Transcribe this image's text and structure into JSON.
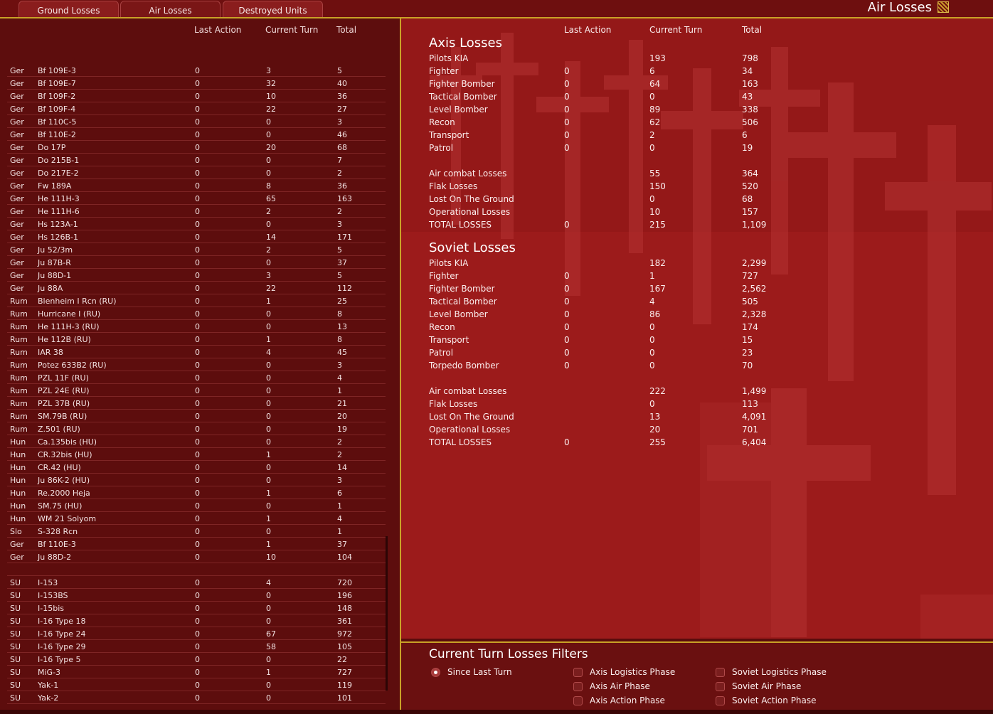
{
  "tabs": [
    "Ground Losses",
    "Air Losses",
    "Destroyed Units"
  ],
  "window_title": "Air Losses",
  "columns": {
    "last_action": "Last Action",
    "current_turn": "Current Turn",
    "total": "Total"
  },
  "aircraft_rows": [
    [
      "Ger",
      "Bf 109E-3",
      "0",
      "3",
      "5"
    ],
    [
      "Ger",
      "Bf 109E-7",
      "0",
      "32",
      "40"
    ],
    [
      "Ger",
      "Bf 109F-2",
      "0",
      "10",
      "36"
    ],
    [
      "Ger",
      "Bf 109F-4",
      "0",
      "22",
      "27"
    ],
    [
      "Ger",
      "Bf 110C-5",
      "0",
      "0",
      "3"
    ],
    [
      "Ger",
      "Bf 110E-2",
      "0",
      "0",
      "46"
    ],
    [
      "Ger",
      "Do 17P",
      "0",
      "20",
      "68"
    ],
    [
      "Ger",
      "Do 215B-1",
      "0",
      "0",
      "7"
    ],
    [
      "Ger",
      "Do 217E-2",
      "0",
      "0",
      "2"
    ],
    [
      "Ger",
      "Fw 189A",
      "0",
      "8",
      "36"
    ],
    [
      "Ger",
      "He 111H-3",
      "0",
      "65",
      "163"
    ],
    [
      "Ger",
      "He 111H-6",
      "0",
      "2",
      "2"
    ],
    [
      "Ger",
      "Hs 123A-1",
      "0",
      "0",
      "3"
    ],
    [
      "Ger",
      "Hs 126B-1",
      "0",
      "14",
      "171"
    ],
    [
      "Ger",
      "Ju 52/3m",
      "0",
      "2",
      "5"
    ],
    [
      "Ger",
      "Ju 87B-R",
      "0",
      "0",
      "37"
    ],
    [
      "Ger",
      "Ju 88D-1",
      "0",
      "3",
      "5"
    ],
    [
      "Ger",
      "Ju 88A",
      "0",
      "22",
      "112"
    ],
    [
      "Rum",
      "Blenheim I Rcn (RU)",
      "0",
      "1",
      "25"
    ],
    [
      "Rum",
      "Hurricane I (RU)",
      "0",
      "0",
      "8"
    ],
    [
      "Rum",
      "He 111H-3 (RU)",
      "0",
      "0",
      "13"
    ],
    [
      "Rum",
      "He 112B (RU)",
      "0",
      "1",
      "8"
    ],
    [
      "Rum",
      "IAR 38",
      "0",
      "4",
      "45"
    ],
    [
      "Rum",
      "Potez 633B2 (RU)",
      "0",
      "0",
      "3"
    ],
    [
      "Rum",
      "PZL 11F (RU)",
      "0",
      "0",
      "4"
    ],
    [
      "Rum",
      "PZL 24E (RU)",
      "0",
      "0",
      "1"
    ],
    [
      "Rum",
      "PZL 37B (RU)",
      "0",
      "0",
      "21"
    ],
    [
      "Rum",
      "SM.79B (RU)",
      "0",
      "0",
      "20"
    ],
    [
      "Rum",
      "Z.501 (RU)",
      "0",
      "0",
      "19"
    ],
    [
      "Hun",
      "Ca.135bis (HU)",
      "0",
      "0",
      "2"
    ],
    [
      "Hun",
      "CR.32bis (HU)",
      "0",
      "1",
      "2"
    ],
    [
      "Hun",
      "CR.42 (HU)",
      "0",
      "0",
      "14"
    ],
    [
      "Hun",
      "Ju 86K-2 (HU)",
      "0",
      "0",
      "3"
    ],
    [
      "Hun",
      "Re.2000 Heja",
      "0",
      "1",
      "6"
    ],
    [
      "Hun",
      "SM.75 (HU)",
      "0",
      "0",
      "1"
    ],
    [
      "Hun",
      "WM 21 Solyom",
      "0",
      "1",
      "4"
    ],
    [
      "Slo",
      "S-328 Rcn",
      "0",
      "0",
      "1"
    ],
    [
      "Ger",
      "Bf 110E-3",
      "0",
      "1",
      "37"
    ],
    [
      "Ger",
      "Ju 88D-2",
      "0",
      "10",
      "104"
    ],
    [
      "",
      "",
      "",
      "",
      ""
    ],
    [
      "SU",
      "I-153",
      "0",
      "4",
      "720"
    ],
    [
      "SU",
      "I-153BS",
      "0",
      "0",
      "196"
    ],
    [
      "SU",
      "I-15bis",
      "0",
      "0",
      "148"
    ],
    [
      "SU",
      "I-16 Type 18",
      "0",
      "0",
      "361"
    ],
    [
      "SU",
      "I-16 Type 24",
      "0",
      "67",
      "972"
    ],
    [
      "SU",
      "I-16 Type 29",
      "0",
      "58",
      "105"
    ],
    [
      "SU",
      "I-16 Type 5",
      "0",
      "0",
      "22"
    ],
    [
      "SU",
      "MiG-3",
      "0",
      "1",
      "727"
    ],
    [
      "SU",
      "Yak-1",
      "0",
      "0",
      "119"
    ],
    [
      "SU",
      "Yak-2",
      "0",
      "0",
      "101"
    ]
  ],
  "axis": {
    "title": "Axis Losses",
    "rows": [
      [
        "Pilots KIA",
        "",
        "193",
        "798"
      ],
      [
        "Fighter",
        "0",
        "6",
        "34"
      ],
      [
        "Fighter Bomber",
        "0",
        "64",
        "163"
      ],
      [
        "Tactical Bomber",
        "0",
        "0",
        "43"
      ],
      [
        "Level Bomber",
        "0",
        "89",
        "338"
      ],
      [
        "Recon",
        "0",
        "62",
        "506"
      ],
      [
        "Transport",
        "0",
        "2",
        "6"
      ],
      [
        "Patrol",
        "0",
        "0",
        "19"
      ]
    ],
    "summary": [
      [
        "Air combat Losses",
        "",
        "55",
        "364"
      ],
      [
        "Flak Losses",
        "",
        "150",
        "520"
      ],
      [
        "Lost On The Ground",
        "",
        "0",
        "68"
      ],
      [
        "Operational Losses",
        "",
        "10",
        "157"
      ],
      [
        "TOTAL LOSSES",
        "0",
        "215",
        "1,109"
      ]
    ]
  },
  "soviet": {
    "title": "Soviet Losses",
    "rows": [
      [
        "Pilots KIA",
        "",
        "182",
        "2,299"
      ],
      [
        "Fighter",
        "0",
        "1",
        "727"
      ],
      [
        "Fighter Bomber",
        "0",
        "167",
        "2,562"
      ],
      [
        "Tactical Bomber",
        "0",
        "4",
        "505"
      ],
      [
        "Level Bomber",
        "0",
        "86",
        "2,328"
      ],
      [
        "Recon",
        "0",
        "0",
        "174"
      ],
      [
        "Transport",
        "0",
        "0",
        "15"
      ],
      [
        "Patrol",
        "0",
        "0",
        "23"
      ],
      [
        "Torpedo Bomber",
        "0",
        "0",
        "70"
      ]
    ],
    "summary": [
      [
        "Air combat Losses",
        "",
        "222",
        "1,499"
      ],
      [
        "Flak Losses",
        "",
        "0",
        "113"
      ],
      [
        "Lost On The Ground",
        "",
        "13",
        "4,091"
      ],
      [
        "Operational Losses",
        "",
        "20",
        "701"
      ],
      [
        "TOTAL LOSSES",
        "0",
        "255",
        "6,404"
      ]
    ]
  },
  "filters": {
    "title": "Current Turn Losses Filters",
    "radio_label": "Since Last Turn",
    "radio_selected": true,
    "checkboxes": [
      "Axis Logistics Phase",
      "Axis Air Phase",
      "Axis Action Phase",
      "Soviet Logistics Phase",
      "Soviet Air Phase",
      "Soviet Action Phase"
    ]
  },
  "colors": {
    "accent_border": "#c9a227",
    "panel": "#5d0d0d",
    "background_red": "#a01c1c"
  }
}
